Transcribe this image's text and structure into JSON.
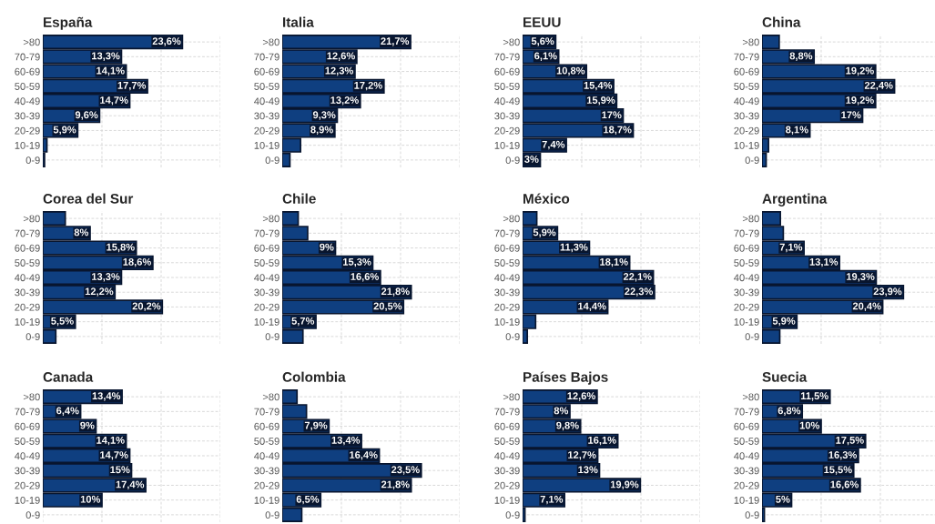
{
  "chart_data": [
    {
      "type": "bar",
      "orientation": "horizontal",
      "title": "España",
      "categories": [
        ">80",
        "70-79",
        "60-69",
        "50-59",
        "40-49",
        "30-39",
        "20-29",
        "10-19",
        "0-9"
      ],
      "values": [
        23.6,
        13.3,
        14.1,
        17.7,
        14.7,
        9.6,
        5.9,
        0.7,
        0.3
      ],
      "value_labels": [
        "23,6%",
        "13,3%",
        "14,1%",
        "17,7%",
        "14,7%",
        "9,6%",
        "5,9%",
        null,
        null
      ],
      "color": "#0f3f80",
      "xlim": [
        0,
        30
      ],
      "tick_labels": "y",
      "grid": true
    },
    {
      "type": "bar",
      "orientation": "horizontal",
      "title": "Italia",
      "categories": [
        ">80",
        "70-79",
        "60-69",
        "50-59",
        "40-49",
        "30-39",
        "20-29",
        "10-19",
        "0-9"
      ],
      "values": [
        21.7,
        12.6,
        12.3,
        17.2,
        13.2,
        9.3,
        8.9,
        3.1,
        1.3
      ],
      "value_labels": [
        "21,7%",
        "12,6%",
        "12,3%",
        "17,2%",
        "13,2%",
        "9,3%",
        "8,9%",
        null,
        null
      ],
      "color": "#0f3f80",
      "xlim": [
        0,
        30
      ],
      "tick_labels": "y",
      "grid": true
    },
    {
      "type": "bar",
      "orientation": "horizontal",
      "title": "EEUU",
      "categories": [
        ">80",
        "70-79",
        "60-69",
        "50-59",
        "40-49",
        "30-39",
        "20-29",
        "10-19",
        "0-9"
      ],
      "values": [
        5.6,
        6.1,
        10.8,
        15.4,
        15.9,
        17,
        18.7,
        7.4,
        3
      ],
      "value_labels": [
        "5,6%",
        "6,1%",
        "10,8%",
        "15,4%",
        "15,9%",
        "17%",
        "18,7%",
        "7,4%",
        "3%"
      ],
      "color": "#0f3f80",
      "xlim": [
        0,
        30
      ],
      "tick_labels": "y",
      "grid": true
    },
    {
      "type": "bar",
      "orientation": "horizontal",
      "title": "China",
      "categories": [
        ">80",
        "70-79",
        "60-69",
        "50-59",
        "40-49",
        "30-39",
        "20-29",
        "10-19",
        "0-9"
      ],
      "values": [
        2.9,
        8.8,
        19.2,
        22.4,
        19.2,
        17,
        8.1,
        1.1,
        0.7
      ],
      "value_labels": [
        null,
        "8,8%",
        "19,2%",
        "22,4%",
        "19,2%",
        "17%",
        "8,1%",
        null,
        null
      ],
      "color": "#0f3f80",
      "xlim": [
        0,
        30
      ],
      "tick_labels": "y",
      "grid": true
    },
    {
      "type": "bar",
      "orientation": "horizontal",
      "title": "Corea del Sur",
      "categories": [
        ">80",
        "70-79",
        "60-69",
        "50-59",
        "40-49",
        "30-39",
        "20-29",
        "10-19",
        "0-9"
      ],
      "values": [
        3.8,
        8,
        15.8,
        18.6,
        13.3,
        12.2,
        20.2,
        5.5,
        2.2
      ],
      "value_labels": [
        null,
        "8%",
        "15,8%",
        "18,6%",
        "13,3%",
        "12,2%",
        "20,2%",
        "5,5%",
        null
      ],
      "color": "#0f3f80",
      "xlim": [
        0,
        30
      ],
      "tick_labels": "y",
      "grid": true
    },
    {
      "type": "bar",
      "orientation": "horizontal",
      "title": "Chile",
      "categories": [
        ">80",
        "70-79",
        "60-69",
        "50-59",
        "40-49",
        "30-39",
        "20-29",
        "10-19",
        "0-9"
      ],
      "values": [
        2.7,
        4.3,
        9,
        15.3,
        16.6,
        21.8,
        20.5,
        5.7,
        3.5
      ],
      "value_labels": [
        null,
        null,
        "9%",
        "15,3%",
        "16,6%",
        "21,8%",
        "20,5%",
        "5,7%",
        null
      ],
      "color": "#0f3f80",
      "xlim": [
        0,
        30
      ],
      "tick_labels": "y",
      "grid": true
    },
    {
      "type": "bar",
      "orientation": "horizontal",
      "title": "México",
      "categories": [
        ">80",
        "70-79",
        "60-69",
        "50-59",
        "40-49",
        "30-39",
        "20-29",
        "10-19",
        "0-9"
      ],
      "values": [
        2.4,
        5.9,
        11.3,
        18.1,
        22.1,
        22.3,
        14.4,
        2.2,
        0.8
      ],
      "value_labels": [
        null,
        "5,9%",
        "11,3%",
        "18,1%",
        "22,1%",
        "22,3%",
        "14,4%",
        null,
        null
      ],
      "color": "#0f3f80",
      "xlim": [
        0,
        30
      ],
      "tick_labels": "y",
      "grid": true
    },
    {
      "type": "bar",
      "orientation": "horizontal",
      "title": "Argentina",
      "categories": [
        ">80",
        "70-79",
        "60-69",
        "50-59",
        "40-49",
        "30-39",
        "20-29",
        "10-19",
        "0-9"
      ],
      "values": [
        3.1,
        3.6,
        7.1,
        13.1,
        19.3,
        23.9,
        20.4,
        5.9,
        3
      ],
      "value_labels": [
        null,
        null,
        "7,1%",
        "13,1%",
        "19,3%",
        "23,9%",
        "20,4%",
        "5,9%",
        null
      ],
      "color": "#0f3f80",
      "xlim": [
        0,
        30
      ],
      "tick_labels": "y",
      "grid": true
    },
    {
      "type": "bar",
      "orientation": "horizontal",
      "title": "Canada",
      "categories": [
        ">80",
        "70-79",
        "60-69",
        "50-59",
        "40-49",
        "30-39",
        "20-29",
        "10-19",
        "0-9"
      ],
      "values": [
        13.4,
        6.4,
        9,
        14.1,
        14.7,
        15,
        17.4,
        10,
        0
      ],
      "value_labels": [
        "13,4%",
        "6,4%",
        "9%",
        "14,1%",
        "14,7%",
        "15%",
        "17,4%",
        "10%",
        null
      ],
      "color": "#0f3f80",
      "xlim": [
        0,
        30
      ],
      "tick_labels": "y",
      "grid": true
    },
    {
      "type": "bar",
      "orientation": "horizontal",
      "title": "Colombia",
      "categories": [
        ">80",
        "70-79",
        "60-69",
        "50-59",
        "40-49",
        "30-39",
        "20-29",
        "10-19",
        "0-9"
      ],
      "values": [
        2.5,
        4.1,
        7.9,
        13.4,
        16.4,
        23.5,
        21.8,
        6.5,
        3.3
      ],
      "value_labels": [
        null,
        null,
        "7,9%",
        "13,4%",
        "16,4%",
        "23,5%",
        "21,8%",
        "6,5%",
        null
      ],
      "color": "#0f3f80",
      "xlim": [
        0,
        30
      ],
      "tick_labels": "y",
      "grid": true
    },
    {
      "type": "bar",
      "orientation": "horizontal",
      "title": "Países Bajos",
      "categories": [
        ">80",
        "70-79",
        "60-69",
        "50-59",
        "40-49",
        "30-39",
        "20-29",
        "10-19",
        "0-9"
      ],
      "values": [
        12.6,
        8,
        9.8,
        16.1,
        12.7,
        13,
        19.9,
        7.1,
        0.4
      ],
      "value_labels": [
        "12,6%",
        "8%",
        "9,8%",
        "16,1%",
        "12,7%",
        "13%",
        "19,9%",
        "7,1%",
        null
      ],
      "color": "#0f3f80",
      "xlim": [
        0,
        30
      ],
      "tick_labels": "y",
      "grid": true
    },
    {
      "type": "bar",
      "orientation": "horizontal",
      "title": "Suecia",
      "categories": [
        ">80",
        "70-79",
        "60-69",
        "50-59",
        "40-49",
        "30-39",
        "20-29",
        "10-19",
        "0-9"
      ],
      "values": [
        11.5,
        6.8,
        10,
        17.5,
        16.3,
        15.5,
        16.6,
        5,
        0.4
      ],
      "value_labels": [
        "11,5%",
        "6,8%",
        "10%",
        "17,5%",
        "16,3%",
        "15,5%",
        "16,6%",
        "5%",
        null
      ],
      "color": "#0f3f80",
      "xlim": [
        0,
        30
      ],
      "tick_labels": "y",
      "grid": true
    }
  ]
}
